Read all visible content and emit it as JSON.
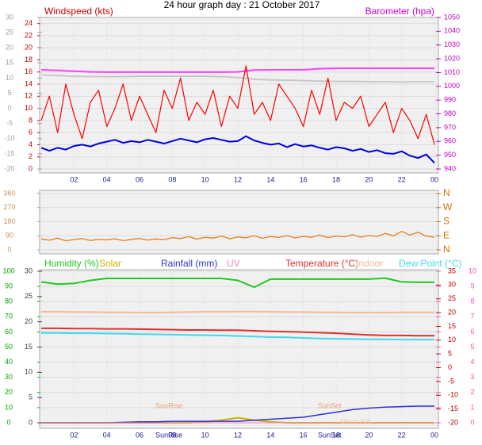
{
  "chart_data": [
    {
      "type": "line",
      "title": "24 hour graph day : 21 October 2017",
      "ylabel": "Windspeed (kts)",
      "y2label": "Barometer (hpa)",
      "x": [
        0,
        0.5,
        1,
        1.5,
        2,
        2.5,
        3,
        3.5,
        4,
        4.5,
        5,
        5.5,
        6,
        6.5,
        7,
        7.5,
        8,
        8.5,
        9,
        9.5,
        10,
        10.5,
        11,
        11.5,
        12,
        12.5,
        13,
        13.5,
        14,
        14.5,
        15,
        15.5,
        16,
        16.5,
        17,
        17.5,
        18,
        18.5,
        19,
        19.5,
        20,
        20.5,
        21,
        21.5,
        22,
        22.5,
        23,
        23.5,
        24
      ],
      "xlim": [
        0,
        24
      ],
      "xticks": [
        {
          "value": 2,
          "label": "02"
        },
        {
          "value": 4,
          "label": "04"
        },
        {
          "value": 6,
          "label": "06"
        },
        {
          "value": 8,
          "label": "08"
        },
        10,
        12,
        14,
        16,
        18,
        20,
        22,
        {
          "value": 24,
          "label": "00"
        }
      ],
      "ylim": [
        0,
        25
      ],
      "yticks": [
        0,
        2,
        4,
        6,
        8,
        10,
        12,
        14,
        16,
        18,
        20,
        22,
        24
      ],
      "y2lim": [
        940,
        1050
      ],
      "y2ticks": [
        1050,
        1040,
        1030,
        1020,
        1010,
        1000,
        990,
        980,
        970,
        960,
        950,
        940
      ],
      "y3lim": [
        -20,
        30
      ],
      "y3ticks": [
        30,
        25,
        20,
        15,
        10,
        5,
        0,
        -5,
        -10,
        -15,
        -20
      ],
      "grid": true,
      "series": [
        {
          "color": "#c8c8c8",
          "axis": "y3",
          "width": 2,
          "x": [
            0,
            1,
            2,
            3,
            4,
            5,
            6,
            7,
            8,
            9,
            10,
            11,
            12,
            13,
            14,
            15,
            16,
            17,
            18,
            19,
            20,
            21,
            22,
            23,
            24
          ],
          "values": [
            11,
            10.8,
            10.6,
            10.5,
            10.5,
            10.5,
            10.6,
            10.6,
            10.6,
            10.6,
            10.6,
            10.5,
            10.2,
            9.6,
            9.4,
            9.3,
            9.2,
            9,
            8.9,
            8.9,
            8.8,
            8.8,
            8.7,
            8.8,
            8.8
          ]
        },
        {
          "color": "#ff40ff",
          "axis": "y2",
          "width": 2,
          "x": [
            0,
            1,
            2,
            3,
            4,
            5,
            6,
            7,
            8,
            9,
            10,
            11,
            12,
            13,
            14,
            15,
            16,
            17,
            18,
            19,
            20,
            21,
            22,
            23,
            24
          ],
          "values": [
            1012,
            1011.5,
            1011,
            1010.5,
            1010.3,
            1010.3,
            1010.3,
            1010.3,
            1010.3,
            1010.3,
            1010.3,
            1010.3,
            1010.5,
            1011.8,
            1012,
            1012,
            1012,
            1012.8,
            1013.1,
            1013.1,
            1013.1,
            1013.1,
            1013.1,
            1013.1,
            1013.1
          ]
        },
        {
          "color": "#ff0000",
          "axis": "y",
          "width": 1.2,
          "values": [
            8,
            12,
            6,
            14,
            9,
            5,
            11,
            13,
            7,
            10,
            14,
            8,
            12,
            9,
            6,
            13,
            10,
            15,
            8,
            11,
            9,
            13,
            7,
            12,
            10,
            17,
            9,
            11,
            8,
            14,
            12,
            10,
            7,
            13,
            9,
            15,
            8,
            11,
            10,
            12,
            7,
            9,
            11,
            6,
            10,
            8,
            5,
            9,
            4
          ]
        },
        {
          "color": "#0000e0",
          "axis": "y",
          "width": 2,
          "values": [
            3.5,
            3,
            3.5,
            3.2,
            3.8,
            4,
            3.7,
            4.2,
            4.5,
            4.8,
            4.3,
            4.6,
            4.4,
            4.8,
            4.5,
            4.2,
            4.6,
            5,
            4.7,
            4.4,
            4.9,
            5.1,
            4.8,
            4.5,
            4.6,
            5.4,
            4.7,
            4.3,
            4,
            4.2,
            3.6,
            4.1,
            3.7,
            3.9,
            3.5,
            3.2,
            3.6,
            3.4,
            3,
            3.3,
            2.8,
            3.1,
            2.6,
            2.5,
            2.9,
            2.2,
            1.8,
            2.4,
            1
          ]
        }
      ]
    },
    {
      "type": "line",
      "x": [
        0,
        0.5,
        1,
        1.5,
        2,
        2.5,
        3,
        3.5,
        4,
        4.5,
        5,
        5.5,
        6,
        6.5,
        7,
        7.5,
        8,
        8.5,
        9,
        9.5,
        10,
        10.5,
        11,
        11.5,
        12,
        12.5,
        13,
        13.5,
        14,
        14.5,
        15,
        15.5,
        16,
        16.5,
        17,
        17.5,
        18,
        18.5,
        19,
        19.5,
        20,
        20.5,
        21,
        21.5,
        22,
        22.5,
        23,
        23.5,
        24
      ],
      "xlim": [
        0,
        24
      ],
      "ylim": [
        0,
        360
      ],
      "yticks": [
        360,
        270,
        180,
        90,
        0
      ],
      "y2lim": [
        0,
        360
      ],
      "y2ticks": [
        {
          "value": 360,
          "label": "N"
        },
        {
          "value": 270,
          "label": "W"
        },
        {
          "value": 180,
          "label": "S"
        },
        {
          "value": 90,
          "label": "E"
        },
        {
          "value": 0,
          "label": "N"
        }
      ],
      "grid": true,
      "series": [
        {
          "color": "#e08020",
          "axis": "y",
          "width": 1.3,
          "values": [
            70,
            62,
            75,
            58,
            66,
            72,
            60,
            68,
            64,
            71,
            59,
            67,
            73,
            63,
            70,
            66,
            78,
            72,
            84,
            69,
            80,
            75,
            88,
            71,
            82,
            77,
            90,
            74,
            85,
            79,
            92,
            76,
            86,
            80,
            95,
            78,
            88,
            83,
            97,
            81,
            92,
            86,
            105,
            90,
            118,
            95,
            112,
            88,
            80
          ]
        }
      ]
    },
    {
      "type": "line",
      "x": [
        0,
        1,
        2,
        3,
        4,
        5,
        6,
        7,
        8,
        9,
        10,
        11,
        12,
        13,
        14,
        15,
        16,
        17,
        18,
        19,
        20,
        21,
        22,
        23,
        24
      ],
      "xlim": [
        0,
        24
      ],
      "xticks": [
        {
          "value": 2,
          "label": "02"
        },
        {
          "value": 4,
          "label": "04"
        },
        {
          "value": 6,
          "label": "06"
        },
        {
          "value": 8,
          "label": "08"
        },
        10,
        12,
        14,
        16,
        18,
        20,
        22,
        {
          "value": 24,
          "label": "00"
        }
      ],
      "ylim": [
        0,
        100
      ],
      "yticks": [
        100,
        90,
        80,
        70,
        60,
        50,
        40,
        30,
        20,
        10,
        0
      ],
      "y2lim": [
        -20,
        35
      ],
      "y2ticks": [
        35,
        30,
        25,
        20,
        15,
        10,
        5,
        0,
        -5,
        -10,
        -15,
        -20
      ],
      "y3lim": [
        0,
        30
      ],
      "y3ticks": [
        30,
        25,
        20,
        15,
        10,
        5,
        0
      ],
      "y4lim": [
        0,
        10
      ],
      "y4ticks": [
        10,
        9,
        8,
        7,
        6,
        5,
        4,
        3,
        2,
        1,
        0
      ],
      "grid": true,
      "series": [
        {
          "name": "Humidity (%)",
          "color": "#20c820",
          "axis": "y",
          "width": 2,
          "values": [
            93,
            91.5,
            92,
            94,
            95.3,
            95.3,
            95.3,
            95.3,
            95.3,
            95.3,
            95.3,
            95.3,
            94,
            89.5,
            94.8,
            94.8,
            94.8,
            94.8,
            94.8,
            94.8,
            94.8,
            95.5,
            93,
            92.7,
            92.7
          ]
        },
        {
          "name": "Solar",
          "color": "#c8b400",
          "axis": "y3",
          "width": 2,
          "values": [
            0,
            0,
            0,
            0,
            0,
            0,
            0,
            0,
            0,
            0,
            0.2,
            0.5,
            1,
            0.5,
            0.2,
            0,
            0,
            0,
            0,
            0,
            0,
            0,
            0,
            0,
            0
          ]
        },
        {
          "name": "Rainfall (mm)",
          "color": "#3030d8",
          "axis": "y3",
          "width": 1.5,
          "values": [
            0,
            0,
            0,
            0,
            0,
            0.1,
            0.2,
            0.2,
            0.3,
            0.3,
            0.3,
            0.3,
            0.3,
            0.5,
            0.7,
            0.9,
            1.1,
            1.6,
            2.1,
            2.6,
            2.9,
            3.1,
            3.2,
            3.3,
            3.3
          ]
        },
        {
          "name": "UV",
          "color": "#ff80c0",
          "axis": "y4",
          "width": 1,
          "values": [
            0,
            0,
            0,
            0,
            0,
            0,
            0,
            0,
            0,
            0,
            0,
            0,
            0,
            0,
            0,
            0,
            0,
            0,
            0,
            0,
            0,
            0,
            0,
            0,
            0
          ]
        },
        {
          "name": "Temperature (°C)",
          "color": "#e03030",
          "axis": "y2",
          "width": 2,
          "values": [
            14.3,
            14.3,
            14.2,
            14.2,
            14.1,
            14.1,
            14,
            13.9,
            13.8,
            13.7,
            13.7,
            13.6,
            13.6,
            13.4,
            13.2,
            13.1,
            12.9,
            12.7,
            12.5,
            12.2,
            11.9,
            11.7,
            11.7,
            11.6,
            11.6
          ]
        },
        {
          "name": "Indoor",
          "color": "#f4b898",
          "axis": "y2",
          "width": 2,
          "values": [
            20.3,
            20.3,
            20.2,
            20.2,
            20.1,
            20.1,
            20,
            20,
            20.1,
            20.2,
            20.3,
            20.3,
            20.4,
            20.4,
            20.3,
            20.2,
            20.2,
            20.1,
            20.1,
            20,
            20,
            20,
            20.1,
            20.1,
            20.1
          ]
        },
        {
          "name": "Dew Point (°C)",
          "color": "#40d8f0",
          "axis": "y2",
          "width": 2,
          "values": [
            12.6,
            12.6,
            12.5,
            12.5,
            12.4,
            12.3,
            12.2,
            12.1,
            12,
            11.9,
            11.8,
            11.7,
            11.5,
            11.3,
            11.1,
            11,
            10.8,
            10.6,
            10.5,
            10.4,
            10.3,
            10.3,
            10.2,
            10.2,
            10.2
          ]
        }
      ],
      "sun_annotations": [
        {
          "text": "SunRise",
          "x": 7.8
        },
        {
          "text": "SunSet",
          "x": 17.6
        }
      ],
      "moon_annotations": [
        {
          "text": "Moon Set",
          "x": 19.2
        }
      ]
    }
  ]
}
